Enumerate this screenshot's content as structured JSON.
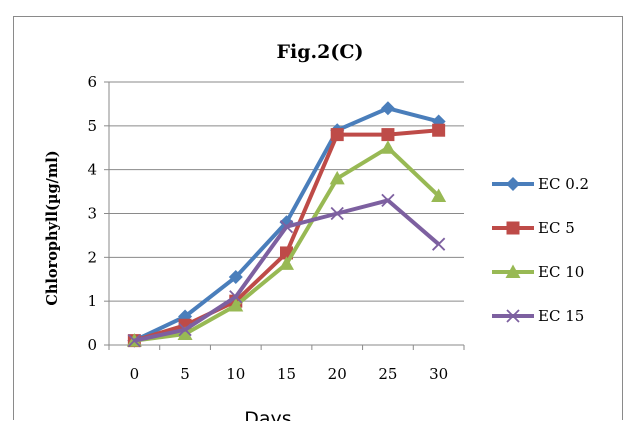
{
  "chart_data": {
    "type": "line",
    "title": "Fig.2(C)",
    "xlabel": "Days",
    "ylabel": "Chlorophyll(µg/ml)",
    "x": [
      0,
      5,
      10,
      15,
      20,
      25,
      30
    ],
    "ylim": [
      0,
      6
    ],
    "yticks": [
      0,
      1,
      2,
      3,
      4,
      5,
      6
    ],
    "grid": true,
    "legend_position": "right",
    "series": [
      {
        "name": "EC 0.2",
        "color": "#4a7ebb",
        "marker": "diamond",
        "values": [
          0.1,
          0.65,
          1.55,
          2.8,
          4.9,
          5.4,
          5.1
        ]
      },
      {
        "name": "EC 5",
        "color": "#be4b48",
        "marker": "square",
        "values": [
          0.1,
          0.45,
          1.0,
          2.1,
          4.8,
          4.8,
          4.9
        ]
      },
      {
        "name": "EC 10",
        "color": "#98b954",
        "marker": "triangle",
        "values": [
          0.1,
          0.25,
          0.9,
          1.85,
          3.8,
          4.5,
          3.4
        ]
      },
      {
        "name": "EC 15",
        "color": "#7d60a0",
        "marker": "x",
        "values": [
          0.1,
          0.35,
          1.1,
          2.7,
          3.0,
          3.3,
          2.3
        ]
      }
    ]
  }
}
